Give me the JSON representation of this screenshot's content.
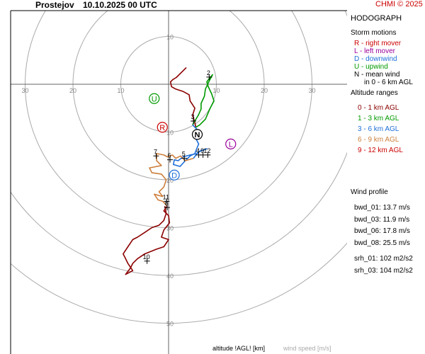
{
  "header": {
    "station": "Prostejov",
    "valid": "10.10.2025 00 UTC",
    "credit": "CHMI © 2025",
    "credit_color": "#cc0000"
  },
  "legend": {
    "title": "HODOGRAPH",
    "storm_motions_title": "Storm motions",
    "storm_motions": [
      {
        "text": "R - right mover",
        "color": "#cc0000"
      },
      {
        "text": "L - left mover",
        "color": "#990099"
      },
      {
        "text": "D - downwind",
        "color": "#1e6fd9"
      },
      {
        "text": "U - upwind",
        "color": "#009900"
      },
      {
        "text": "N - mean wind",
        "color": "#000000"
      },
      {
        "text": "in 0 - 6 km AGL",
        "color": "#000000"
      }
    ],
    "altitude_title": "Altitude ranges",
    "altitude_ranges": [
      {
        "text": "0 - 1 km AGL",
        "color": "#8b0000"
      },
      {
        "text": "1 - 3 km AGL",
        "color": "#009900"
      },
      {
        "text": "3 - 6 km AGL",
        "color": "#1e6fd9"
      },
      {
        "text": "6 - 9 km AGL",
        "color": "#cd7f3c"
      },
      {
        "text": "9 - 12 km AGL",
        "color": "#cc0000"
      }
    ],
    "wind_profile_title": "Wind profile",
    "wind_profile": [
      {
        "text": "bwd_01: 13.7 m/s"
      },
      {
        "text": "bwd_03: 11.9 m/s"
      },
      {
        "text": "bwd_06: 17.8 m/s"
      },
      {
        "text": "bwd_08: 25.5 m/s"
      },
      {
        "text": "srh_01: 102 m2/s2"
      },
      {
        "text": "srh_03: 104 m2/s2"
      }
    ]
  },
  "footer": {
    "altitude_label": "altitude !AGL! [km]",
    "speed_label": "wind speed [m/s]",
    "speed_label_color": "#aaaaaa"
  },
  "chart_data": {
    "type": "line",
    "rings": [
      10,
      20,
      30,
      40,
      50
    ],
    "ring_labels": [
      "10",
      "20",
      "30",
      "40",
      "50"
    ],
    "x_tick_labels": [
      {
        "u": -30,
        "text": "30"
      },
      {
        "u": -20,
        "text": "20"
      },
      {
        "u": -10,
        "text": "10"
      },
      {
        "u": 10,
        "text": "10"
      },
      {
        "u": 20,
        "text": "20"
      },
      {
        "u": 30,
        "text": "30"
      }
    ],
    "grid_color": "#aaaaaa",
    "series": [
      {
        "color": "#8b0000",
        "points": [
          [
            3.7,
            3.5
          ],
          [
            3.2,
            3.0
          ],
          [
            1.6,
            1.4
          ],
          [
            0.9,
            1.0
          ],
          [
            0.4,
            0.5
          ],
          [
            0.6,
            -0.5
          ],
          [
            1.5,
            -1.0
          ],
          [
            3.0,
            -1.5
          ],
          [
            4.3,
            -2.2
          ],
          [
            4.5,
            -3.5
          ],
          [
            5.5,
            -5.0
          ],
          [
            5.0,
            -6.5
          ],
          [
            5.5,
            -8.0
          ],
          [
            5.7,
            -9.0
          ]
        ]
      },
      {
        "color": "#009900",
        "points": [
          [
            5.7,
            -9.0
          ],
          [
            6.5,
            -8.5
          ],
          [
            7.7,
            -7.3
          ],
          [
            8.7,
            -5.0
          ],
          [
            9.5,
            -3.5
          ],
          [
            9.0,
            -2.0
          ],
          [
            8.3,
            -0.5
          ],
          [
            8.0,
            0.5
          ],
          [
            8.5,
            1.2
          ],
          [
            9.2,
            2.0
          ],
          [
            8.5,
            0.7
          ],
          [
            7.7,
            -1.0
          ],
          [
            7.5,
            -2.5
          ],
          [
            6.8,
            -4.0
          ],
          [
            6.8,
            -5.2
          ],
          [
            6.2,
            -6.5
          ],
          [
            5.0,
            -8.5
          ]
        ]
      },
      {
        "color": "#1e6fd9",
        "points": [
          [
            5.0,
            -8.5
          ],
          [
            6.0,
            -9.5
          ],
          [
            5.5,
            -11.0
          ],
          [
            6.3,
            -12.5
          ],
          [
            5.8,
            -13.7
          ],
          [
            5.5,
            -14.5
          ],
          [
            4.5,
            -15.0
          ],
          [
            3.5,
            -16.0
          ],
          [
            2.4,
            -17.2
          ],
          [
            1.0,
            -16.8
          ],
          [
            1.2,
            -15.8
          ],
          [
            2.0,
            -16.0
          ],
          [
            3.0,
            -15.2
          ],
          [
            4.5,
            -14.8
          ],
          [
            6.0,
            -14.5
          ],
          [
            6.5,
            -14.0
          ],
          [
            8.0,
            -13.5
          ],
          [
            6.2,
            -14.2
          ],
          [
            5.2,
            -15.5
          ]
        ]
      },
      {
        "color": "#cd7f3c",
        "points": [
          [
            5.2,
            -15.5
          ],
          [
            3.5,
            -16.0
          ],
          [
            2.5,
            -15.0
          ],
          [
            1.5,
            -15.5
          ],
          [
            0.8,
            -14.8
          ],
          [
            -0.2,
            -15.2
          ],
          [
            -1.0,
            -14.8
          ],
          [
            -2.5,
            -14.5
          ],
          [
            -2.5,
            -16.0
          ],
          [
            -1.5,
            -17.0
          ],
          [
            -4.0,
            -17.5
          ],
          [
            -3.5,
            -18.5
          ],
          [
            -1.5,
            -18.8
          ],
          [
            -0.5,
            -20.0
          ],
          [
            -1.0,
            -21.5
          ],
          [
            -2.0,
            -22.5
          ],
          [
            -1.2,
            -23.5
          ],
          [
            -3.0,
            -23.0
          ],
          [
            -2.2,
            -24.2
          ],
          [
            -1.2,
            -24.5
          ],
          [
            -0.3,
            -25.5
          ]
        ]
      },
      {
        "color": "#8b0000",
        "points": [
          [
            -0.3,
            -25.5
          ],
          [
            -1.0,
            -26.5
          ],
          [
            0.0,
            -27.5
          ],
          [
            0.2,
            -29.0
          ],
          [
            -1.0,
            -30.5
          ],
          [
            -1.5,
            -32.0
          ],
          [
            0.0,
            -32.5
          ],
          [
            -1.0,
            -34.0
          ],
          [
            -2.5,
            -34.5
          ],
          [
            -5.0,
            -35.5
          ],
          [
            -6.5,
            -36.5
          ],
          [
            -7.5,
            -37.5
          ],
          [
            -8.0,
            -38.5
          ],
          [
            -9.0,
            -39.8
          ],
          [
            -7.5,
            -39.0
          ],
          [
            -8.5,
            -37.5
          ],
          [
            -9.0,
            -36.5
          ],
          [
            -9.5,
            -35.5
          ],
          [
            -8.5,
            -34.0
          ],
          [
            -7.5,
            -32.5
          ],
          [
            -6.5,
            -32.0
          ],
          [
            -5.0,
            -31.0
          ],
          [
            -3.5,
            -30.0
          ],
          [
            -2.0,
            -29.5
          ],
          [
            -1.0,
            -28.5
          ],
          [
            -0.5,
            -27.0
          ],
          [
            -0.8,
            -25.5
          ]
        ]
      }
    ],
    "height_marks": [
      {
        "label": "2",
        "u": 8.5,
        "v": 1.5
      },
      {
        "label": "3",
        "u": 5.2,
        "v": -7.7
      },
      {
        "label": "4",
        "u": 6.3,
        "v": -14.8
      },
      {
        "label": "5",
        "u": 3.3,
        "v": -15.5
      },
      {
        "label": "6",
        "u": 0.3,
        "v": -15.8
      },
      {
        "label": "7",
        "u": -2.6,
        "v": -15.0
      },
      {
        "label": "9",
        "u": 7.2,
        "v": -14.8
      },
      {
        "label": "10",
        "u": -4.5,
        "v": -37.0
      },
      {
        "label": "11",
        "u": -0.4,
        "v": -24.5
      },
      {
        "label": "12",
        "u": 8.2,
        "v": -14.8
      },
      {
        "label": "8",
        "u": -0.3,
        "v": -25.8
      }
    ],
    "storm_motions": [
      {
        "label": "U",
        "u": -3.0,
        "v": -3.0,
        "color": "#009900",
        "fill": "#ffffff"
      },
      {
        "label": "R",
        "u": -1.3,
        "v": -9.0,
        "color": "#cc0000",
        "fill": "#ffffff"
      },
      {
        "label": "N",
        "u": 6.0,
        "v": -10.5,
        "color": "#000000",
        "fill": "#ffffff"
      },
      {
        "label": "L",
        "u": 13.0,
        "v": -12.5,
        "color": "#990099",
        "fill": "#ffffff"
      },
      {
        "label": "D",
        "u": 1.2,
        "v": -19.0,
        "color": "#1e6fd9",
        "fill": "#ffffff"
      }
    ]
  }
}
